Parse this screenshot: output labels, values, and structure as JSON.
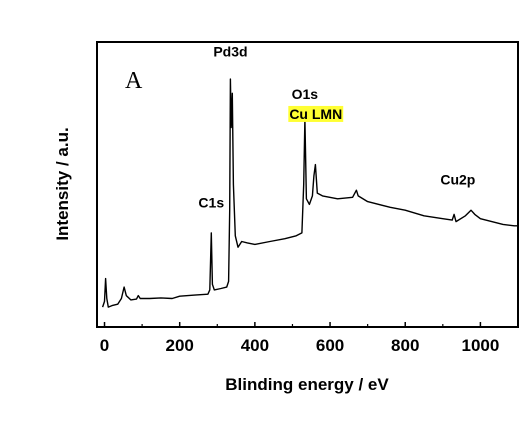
{
  "chart_data": {
    "type": "line",
    "panel_label": "A",
    "xlabel": "Blinding energy / eV",
    "ylabel": "Intensity / a.u.",
    "xlim": [
      -20,
      1100
    ],
    "ylim": [
      0,
      100
    ],
    "x_ticks": [
      0,
      200,
      400,
      600,
      800,
      1000
    ],
    "y_ticks_labeled": false,
    "grid": false,
    "highlight_color": "#ffff33",
    "series": [
      {
        "color": "#000000",
        "points": [
          [
            -5,
            7
          ],
          [
            0,
            9
          ],
          [
            3,
            17
          ],
          [
            6,
            10
          ],
          [
            10,
            7
          ],
          [
            20,
            7.5
          ],
          [
            35,
            8
          ],
          [
            45,
            10
          ],
          [
            52,
            14
          ],
          [
            58,
            11
          ],
          [
            70,
            9.5
          ],
          [
            85,
            9.8
          ],
          [
            90,
            11
          ],
          [
            95,
            10
          ],
          [
            120,
            10
          ],
          [
            150,
            10.2
          ],
          [
            180,
            10
          ],
          [
            200,
            10.8
          ],
          [
            240,
            11.2
          ],
          [
            275,
            11.5
          ],
          [
            280,
            13
          ],
          [
            284,
            33
          ],
          [
            287,
            15
          ],
          [
            292,
            13
          ],
          [
            310,
            13.5
          ],
          [
            325,
            14
          ],
          [
            330,
            16
          ],
          [
            333,
            41
          ],
          [
            335,
            87
          ],
          [
            337,
            70
          ],
          [
            340,
            82
          ],
          [
            343,
            50
          ],
          [
            348,
            32
          ],
          [
            355,
            28
          ],
          [
            365,
            30
          ],
          [
            380,
            29.5
          ],
          [
            400,
            29
          ],
          [
            440,
            30
          ],
          [
            480,
            31
          ],
          [
            510,
            32
          ],
          [
            525,
            33
          ],
          [
            530,
            50
          ],
          [
            533,
            73
          ],
          [
            537,
            45
          ],
          [
            545,
            43
          ],
          [
            553,
            46
          ],
          [
            557,
            53
          ],
          [
            561,
            57
          ],
          [
            566,
            47
          ],
          [
            580,
            46
          ],
          [
            620,
            45
          ],
          [
            660,
            45.5
          ],
          [
            670,
            48
          ],
          [
            675,
            46
          ],
          [
            700,
            44
          ],
          [
            760,
            42
          ],
          [
            800,
            41
          ],
          [
            850,
            39
          ],
          [
            900,
            38
          ],
          [
            925,
            37.5
          ],
          [
            930,
            39.5
          ],
          [
            935,
            37
          ],
          [
            960,
            39
          ],
          [
            975,
            41
          ],
          [
            985,
            39.5
          ],
          [
            1000,
            38
          ],
          [
            1030,
            37
          ],
          [
            1060,
            36
          ],
          [
            1090,
            35.5
          ],
          [
            1100,
            35.5
          ]
        ]
      }
    ],
    "annotations": [
      {
        "text": "Pd3d",
        "x": 335,
        "y": 95
      },
      {
        "text": "O1s",
        "x": 533,
        "y": 80
      },
      {
        "text": "Cu LMN",
        "x": 562,
        "y": 73,
        "highlight": true
      },
      {
        "text": "C1s",
        "x": 284,
        "y": 42
      },
      {
        "text": "Cu2p",
        "x": 940,
        "y": 50
      }
    ]
  }
}
